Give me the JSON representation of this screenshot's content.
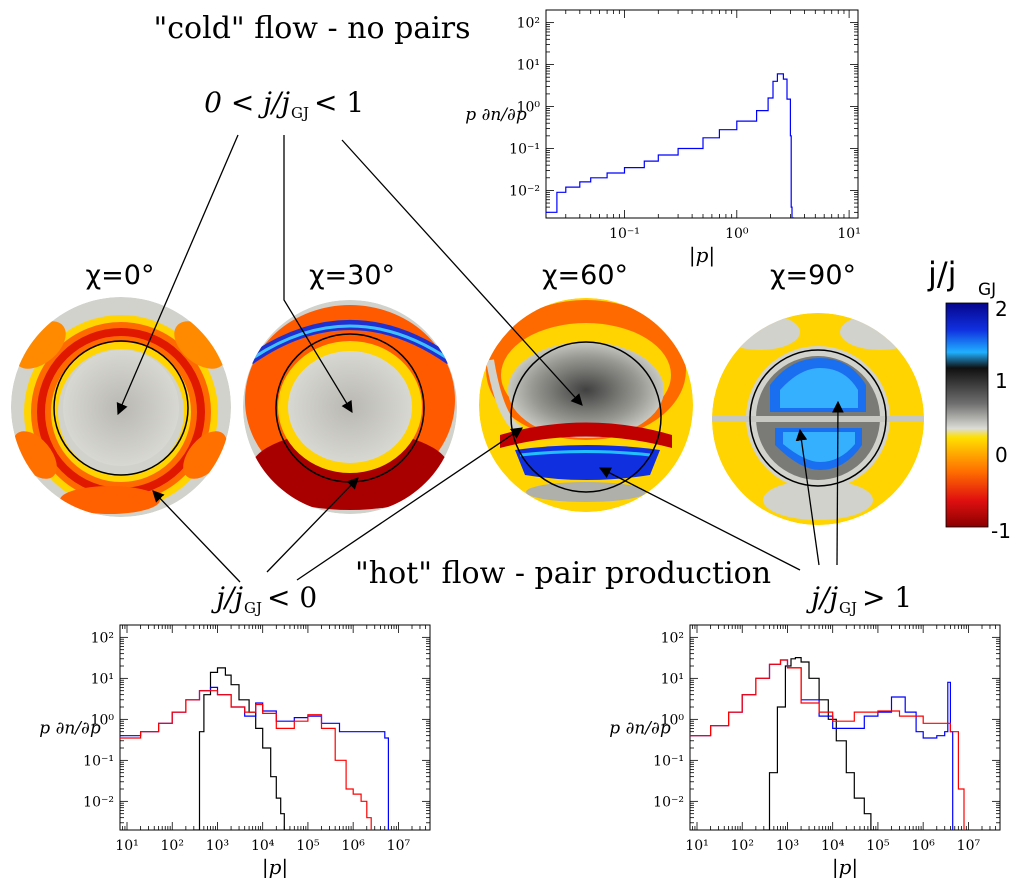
{
  "labels": {
    "cold": "\"cold\" flow - no pairs",
    "hot": "\"hot\" flow - pair production",
    "range_mid": "0 < j/j",
    "range_mid_end": " < 1",
    "range_neg": "j/j",
    "range_neg_end": " < 0",
    "range_pos": "j/j",
    "range_pos_end": " > 1",
    "gj": "GJ"
  },
  "colorbar": {
    "title": "j/j",
    "title_sub": "GJ",
    "ticks": [
      "2",
      "1",
      "0",
      "-1"
    ]
  },
  "maps": [
    {
      "label": "χ=0°"
    },
    {
      "label": "χ=30°"
    },
    {
      "label": "χ=60°"
    },
    {
      "label": "χ=90°"
    }
  ],
  "colors": {
    "blue": "#0000ff",
    "red": "#ff0000",
    "black": "#000000",
    "grey": "#c8c8c0",
    "yellow": "#ffd400",
    "orange": "#ff7a00",
    "darkred": "#a00000",
    "cyan": "#19b4ff",
    "navy": "#0a1aa0"
  },
  "chart_data": [
    {
      "type": "line",
      "step": true,
      "xlabel": "|p|",
      "ylabel": "p ∂n/∂p",
      "xscale": "log",
      "yscale": "log",
      "xlim": [
        0.02,
        12
      ],
      "ylim": [
        0.0022,
        200
      ],
      "xticks": [
        {
          "v": 0.1,
          "t": "10⁻¹"
        },
        {
          "v": 1,
          "t": "10⁰"
        },
        {
          "v": 10,
          "t": "10¹"
        }
      ],
      "yticks": [
        {
          "v": 0.01,
          "t": "10⁻²"
        },
        {
          "v": 0.1,
          "t": "10⁻¹"
        },
        {
          "v": 1,
          "t": "10⁰"
        },
        {
          "v": 10,
          "t": "10¹"
        },
        {
          "v": 100,
          "t": "10²"
        }
      ],
      "series": [
        {
          "color": "#0000ff",
          "x": [
            0.02,
            0.025,
            0.03,
            0.04,
            0.05,
            0.07,
            0.1,
            0.15,
            0.2,
            0.3,
            0.5,
            0.7,
            1.0,
            1.5,
            1.9,
            2.1,
            2.3,
            2.6,
            2.8,
            3.0,
            3.05,
            3.1,
            3.2
          ],
          "y": [
            0.003,
            0.009,
            0.012,
            0.016,
            0.02,
            0.026,
            0.035,
            0.05,
            0.07,
            0.1,
            0.18,
            0.28,
            0.45,
            0.8,
            1.6,
            4.0,
            6.0,
            4.5,
            1.5,
            0.2,
            0.004,
            0.002,
            0.0023
          ]
        }
      ]
    },
    {
      "type": "line",
      "step": true,
      "xlabel": "|p|",
      "ylabel": "p ∂n/∂p",
      "xscale": "log",
      "yscale": "log",
      "xlim": [
        7,
        50000000
      ],
      "ylim": [
        0.002,
        200
      ],
      "xticks": [
        {
          "v": 10,
          "t": "10¹"
        },
        {
          "v": 100,
          "t": "10²"
        },
        {
          "v": 1000,
          "t": "10³"
        },
        {
          "v": 10000,
          "t": "10⁴"
        },
        {
          "v": 100000,
          "t": "10⁵"
        },
        {
          "v": 1000000,
          "t": "10⁶"
        },
        {
          "v": 10000000,
          "t": "10⁷"
        }
      ],
      "yticks": [
        {
          "v": 0.01,
          "t": "10⁻²"
        },
        {
          "v": 0.1,
          "t": "10⁻¹"
        },
        {
          "v": 1,
          "t": "10⁰"
        },
        {
          "v": 10,
          "t": "10¹"
        },
        {
          "v": 100,
          "t": "10²"
        }
      ],
      "series": [
        {
          "color": "#000000",
          "x": [
            300,
            400,
            500,
            700,
            1000,
            1500,
            2000,
            3000,
            5000,
            7000,
            10000,
            15000,
            20000,
            25000,
            30000,
            40000
          ],
          "y": [
            0.002,
            0.5,
            4,
            14,
            18,
            12,
            7,
            3,
            1.5,
            0.6,
            0.2,
            0.04,
            0.012,
            0.005,
            0.002,
            0.002
          ]
        },
        {
          "color": "#0000ff",
          "x": [
            7,
            20,
            50,
            100,
            200,
            400,
            700,
            1000,
            2000,
            4000,
            7000,
            10000,
            20000,
            50000,
            100000,
            200000,
            500000,
            1000000,
            3000000,
            5000000,
            6000000,
            7000000
          ],
          "y": [
            0.4,
            0.5,
            0.8,
            1.5,
            3,
            5,
            6,
            4,
            2,
            1.2,
            2.5,
            1.6,
            0.9,
            1.1,
            1.2,
            0.8,
            0.5,
            0.5,
            0.5,
            0.35,
            0.002,
            0.002
          ]
        },
        {
          "color": "#ff0000",
          "x": [
            7,
            20,
            50,
            100,
            200,
            400,
            700,
            1000,
            2000,
            4000,
            7000,
            10000,
            20000,
            50000,
            100000,
            200000,
            400000,
            700000,
            1000000,
            1500000,
            2000000,
            2500000
          ],
          "y": [
            0.35,
            0.5,
            0.8,
            1.5,
            3,
            5,
            5,
            4,
            2,
            1.5,
            2.3,
            1.4,
            0.6,
            0.9,
            1.3,
            0.6,
            0.1,
            0.02,
            0.015,
            0.01,
            0.004,
            0.002
          ]
        }
      ]
    },
    {
      "type": "line",
      "step": true,
      "xlabel": "|p|",
      "ylabel": "p ∂n/∂p",
      "xscale": "log",
      "yscale": "log",
      "xlim": [
        7,
        50000000
      ],
      "ylim": [
        0.002,
        200
      ],
      "xticks": [
        {
          "v": 10,
          "t": "10¹"
        },
        {
          "v": 100,
          "t": "10²"
        },
        {
          "v": 1000,
          "t": "10³"
        },
        {
          "v": 10000,
          "t": "10⁴"
        },
        {
          "v": 100000,
          "t": "10⁵"
        },
        {
          "v": 1000000,
          "t": "10⁶"
        },
        {
          "v": 10000000,
          "t": "10⁷"
        }
      ],
      "yticks": [
        {
          "v": 0.01,
          "t": "10⁻²"
        },
        {
          "v": 0.1,
          "t": "10⁻¹"
        },
        {
          "v": 1,
          "t": "10⁰"
        },
        {
          "v": 10,
          "t": "10¹"
        },
        {
          "v": 100,
          "t": "10²"
        }
      ],
      "series": [
        {
          "color": "#000000",
          "x": [
            300,
            400,
            600,
            900,
            1200,
            1500,
            2000,
            3000,
            5000,
            8000,
            12000,
            20000,
            30000,
            50000,
            70000,
            100000
          ],
          "y": [
            0.002,
            0.05,
            2,
            20,
            30,
            32,
            25,
            10,
            3,
            1,
            0.3,
            0.05,
            0.012,
            0.005,
            0.002,
            0.002
          ]
        },
        {
          "color": "#0000ff",
          "x": [
            7,
            20,
            50,
            100,
            200,
            400,
            700,
            1000,
            2000,
            5000,
            10000,
            30000,
            50000,
            100000,
            200000,
            400000,
            700000,
            1000000,
            2000000,
            3000000,
            3500000,
            4000000,
            4500000
          ],
          "y": [
            0.4,
            0.7,
            1.5,
            4,
            10,
            22,
            28,
            18,
            3,
            1.2,
            0.6,
            0.6,
            1.2,
            1.5,
            3.5,
            1.5,
            0.5,
            0.35,
            0.4,
            0.5,
            8,
            0.5,
            0.002
          ]
        },
        {
          "color": "#ff0000",
          "x": [
            7,
            20,
            50,
            100,
            200,
            400,
            700,
            1000,
            2000,
            5000,
            10000,
            30000,
            100000,
            300000,
            1000000,
            2000000,
            4000000,
            6000000,
            8000000
          ],
          "y": [
            0.4,
            0.7,
            1.5,
            4,
            10,
            22,
            28,
            18,
            2.5,
            1.5,
            0.9,
            1.5,
            1.6,
            1.2,
            0.8,
            0.8,
            0.5,
            0.02,
            0.002
          ]
        }
      ]
    }
  ]
}
